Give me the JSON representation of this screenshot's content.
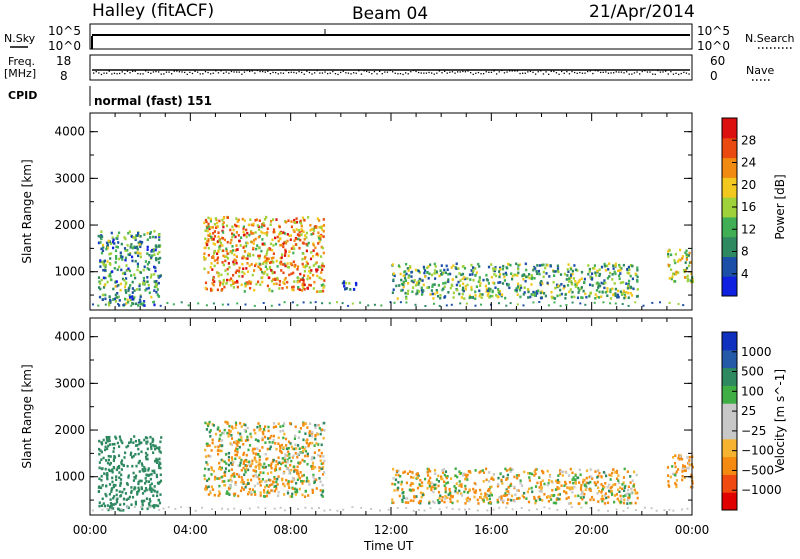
{
  "header": {
    "station": "Halley (fitACF)",
    "beam": "Beam 04",
    "date": "21/Apr/2014"
  },
  "top_panels": {
    "nsky_label": "N.Sky",
    "nsky_ticks": [
      "10^5",
      "10^0"
    ],
    "nsearch_label": "N.Search",
    "nsearch_ticks": [
      "10^5",
      "10^0"
    ],
    "freq_label": "Freq.",
    "freq_unit": "[MHz]",
    "freq_ticks": [
      "18",
      "8"
    ],
    "nave_label": "Nave",
    "nave_ticks": [
      "60",
      "0"
    ],
    "cpid_label": "CPID",
    "cpid_value": "normal (fast) 151"
  },
  "colors": {
    "power": [
      "#1020e0",
      "#1c4fa8",
      "#2e8860",
      "#3fae55",
      "#9fd23a",
      "#f2c81e",
      "#f08a10",
      "#ea4a10",
      "#dd1010"
    ],
    "velocity": [
      "#e00000",
      "#f04a10",
      "#f58a10",
      "#f5b330",
      "#c8c8c8",
      "#c8c8c8",
      "#3fae45",
      "#2e8860",
      "#245aa8",
      "#1030c0"
    ]
  },
  "chart_data": [
    {
      "type": "heatmap",
      "name": "power-panel",
      "ylabel": "Slant Range [km]",
      "xlabel": "",
      "x_ticks": [
        "00:00",
        "04:00",
        "08:00",
        "12:00",
        "16:00",
        "20:00",
        "00:00"
      ],
      "y_ticks": [
        "1000",
        "2000",
        "3000",
        "4000"
      ],
      "xlim_hours": [
        0,
        24
      ],
      "ylim_km": [
        180,
        4400
      ],
      "colorbar": {
        "label": "Power [dB]",
        "ticks": [
          "4",
          "8",
          "12",
          "16",
          "20",
          "24",
          "28"
        ],
        "range": [
          0,
          30
        ]
      },
      "echo_regions": [
        {
          "t": [
            0.3,
            2.8
          ],
          "r": [
            300,
            1900
          ],
          "mean_power": 10
        },
        {
          "t": [
            4.5,
            9.3
          ],
          "r": [
            600,
            2200
          ],
          "mean_power": 20
        },
        {
          "t": [
            10.0,
            10.6
          ],
          "r": [
            600,
            900
          ],
          "mean_power": 8
        },
        {
          "t": [
            12.0,
            21.8
          ],
          "r": [
            450,
            1200
          ],
          "mean_power": 12
        },
        {
          "t": [
            23.0,
            24.0
          ],
          "r": [
            800,
            1500
          ],
          "mean_power": 16
        }
      ]
    },
    {
      "type": "heatmap",
      "name": "velocity-panel",
      "ylabel": "Slant Range [km]",
      "xlabel": "Time UT",
      "x_ticks": [
        "00:00",
        "04:00",
        "08:00",
        "12:00",
        "16:00",
        "20:00",
        "00:00"
      ],
      "y_ticks": [
        "1000",
        "2000",
        "3000",
        "4000"
      ],
      "xlim_hours": [
        0,
        24
      ],
      "ylim_km": [
        180,
        4400
      ],
      "colorbar": {
        "label": "Velocity [m s^-1]",
        "ticks": [
          "1000",
          "500",
          "100",
          "25",
          "−25",
          "−100",
          "−500",
          "−1000"
        ],
        "range": [
          -1000,
          1000
        ]
      },
      "echo_regions": [
        {
          "t": [
            0.3,
            2.8
          ],
          "r": [
            300,
            1900
          ],
          "mean_velocity": 300
        },
        {
          "t": [
            4.5,
            9.3
          ],
          "r": [
            600,
            2200
          ],
          "mean_velocity": -50
        },
        {
          "t": [
            12.0,
            21.8
          ],
          "r": [
            450,
            1200
          ],
          "mean_velocity": -60
        },
        {
          "t": [
            23.0,
            24.0
          ],
          "r": [
            800,
            1500
          ],
          "mean_velocity": -150
        }
      ]
    }
  ]
}
